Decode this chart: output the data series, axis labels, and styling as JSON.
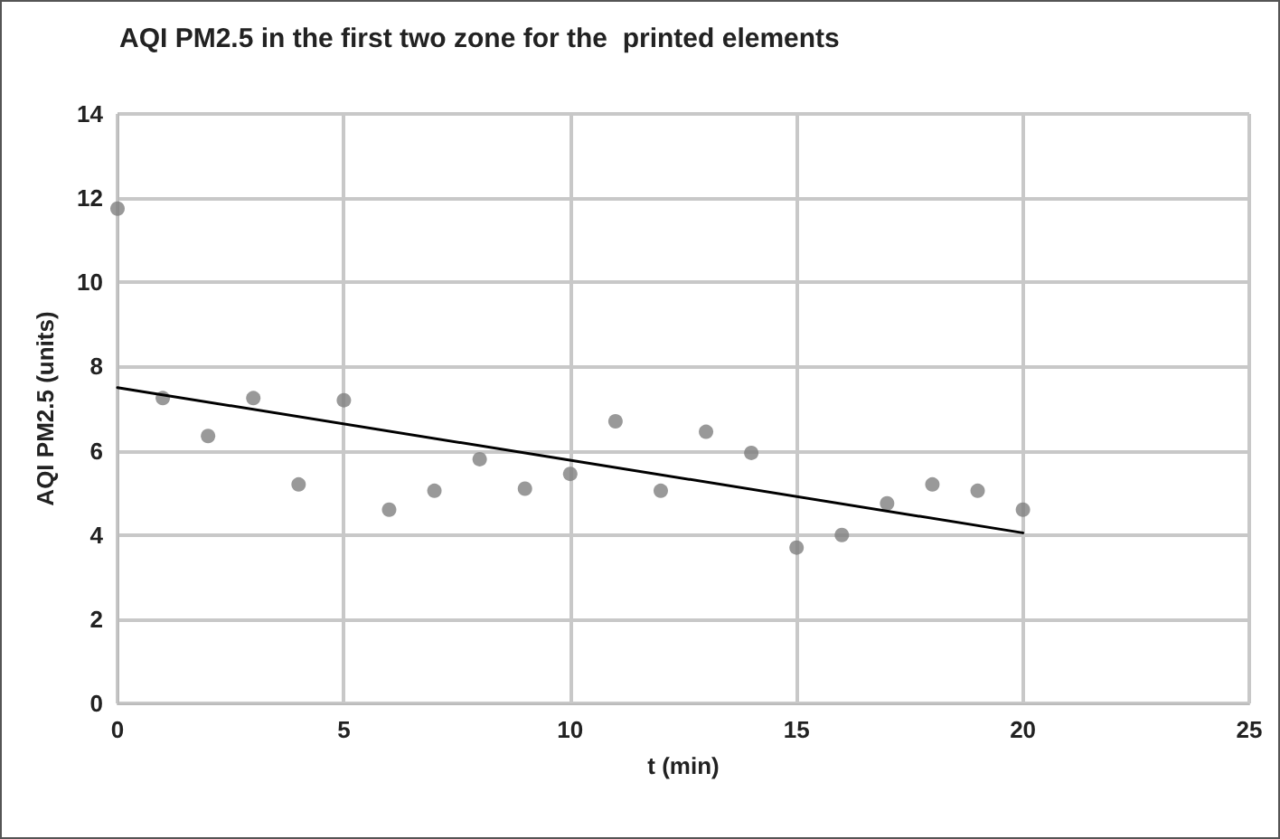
{
  "chart_data": {
    "type": "scatter",
    "title": "AQI PM2.5 in the first two zone for the  printed elements",
    "xlabel": "t (min)",
    "ylabel": "AQI PM2.5 (units)",
    "series": [
      {
        "color": "#808080",
        "marker": "circle",
        "x": [
          0,
          1,
          2,
          3,
          4,
          5,
          6,
          7,
          8,
          9,
          10,
          11,
          12,
          13,
          14,
          15,
          16,
          17,
          18,
          19,
          20
        ],
        "values": [
          11.75,
          7.25,
          6.35,
          7.25,
          5.2,
          7.2,
          4.6,
          5.05,
          5.8,
          5.1,
          5.45,
          6.7,
          5.05,
          6.45,
          5.95,
          3.7,
          4.0,
          4.75,
          5.2,
          5.05,
          4.6
        ]
      },
      {
        "type": "line",
        "marker": "none",
        "color": "#000000",
        "x": [
          0,
          20
        ],
        "values": [
          7.5,
          4.05
        ]
      }
    ],
    "xlim": [
      0,
      25
    ],
    "xticks": [
      0,
      5,
      10,
      15,
      20,
      25
    ],
    "ylim": [
      0,
      14
    ],
    "yticks": [
      0,
      2,
      4,
      6,
      8,
      10,
      12,
      14
    ],
    "grid": true
  }
}
